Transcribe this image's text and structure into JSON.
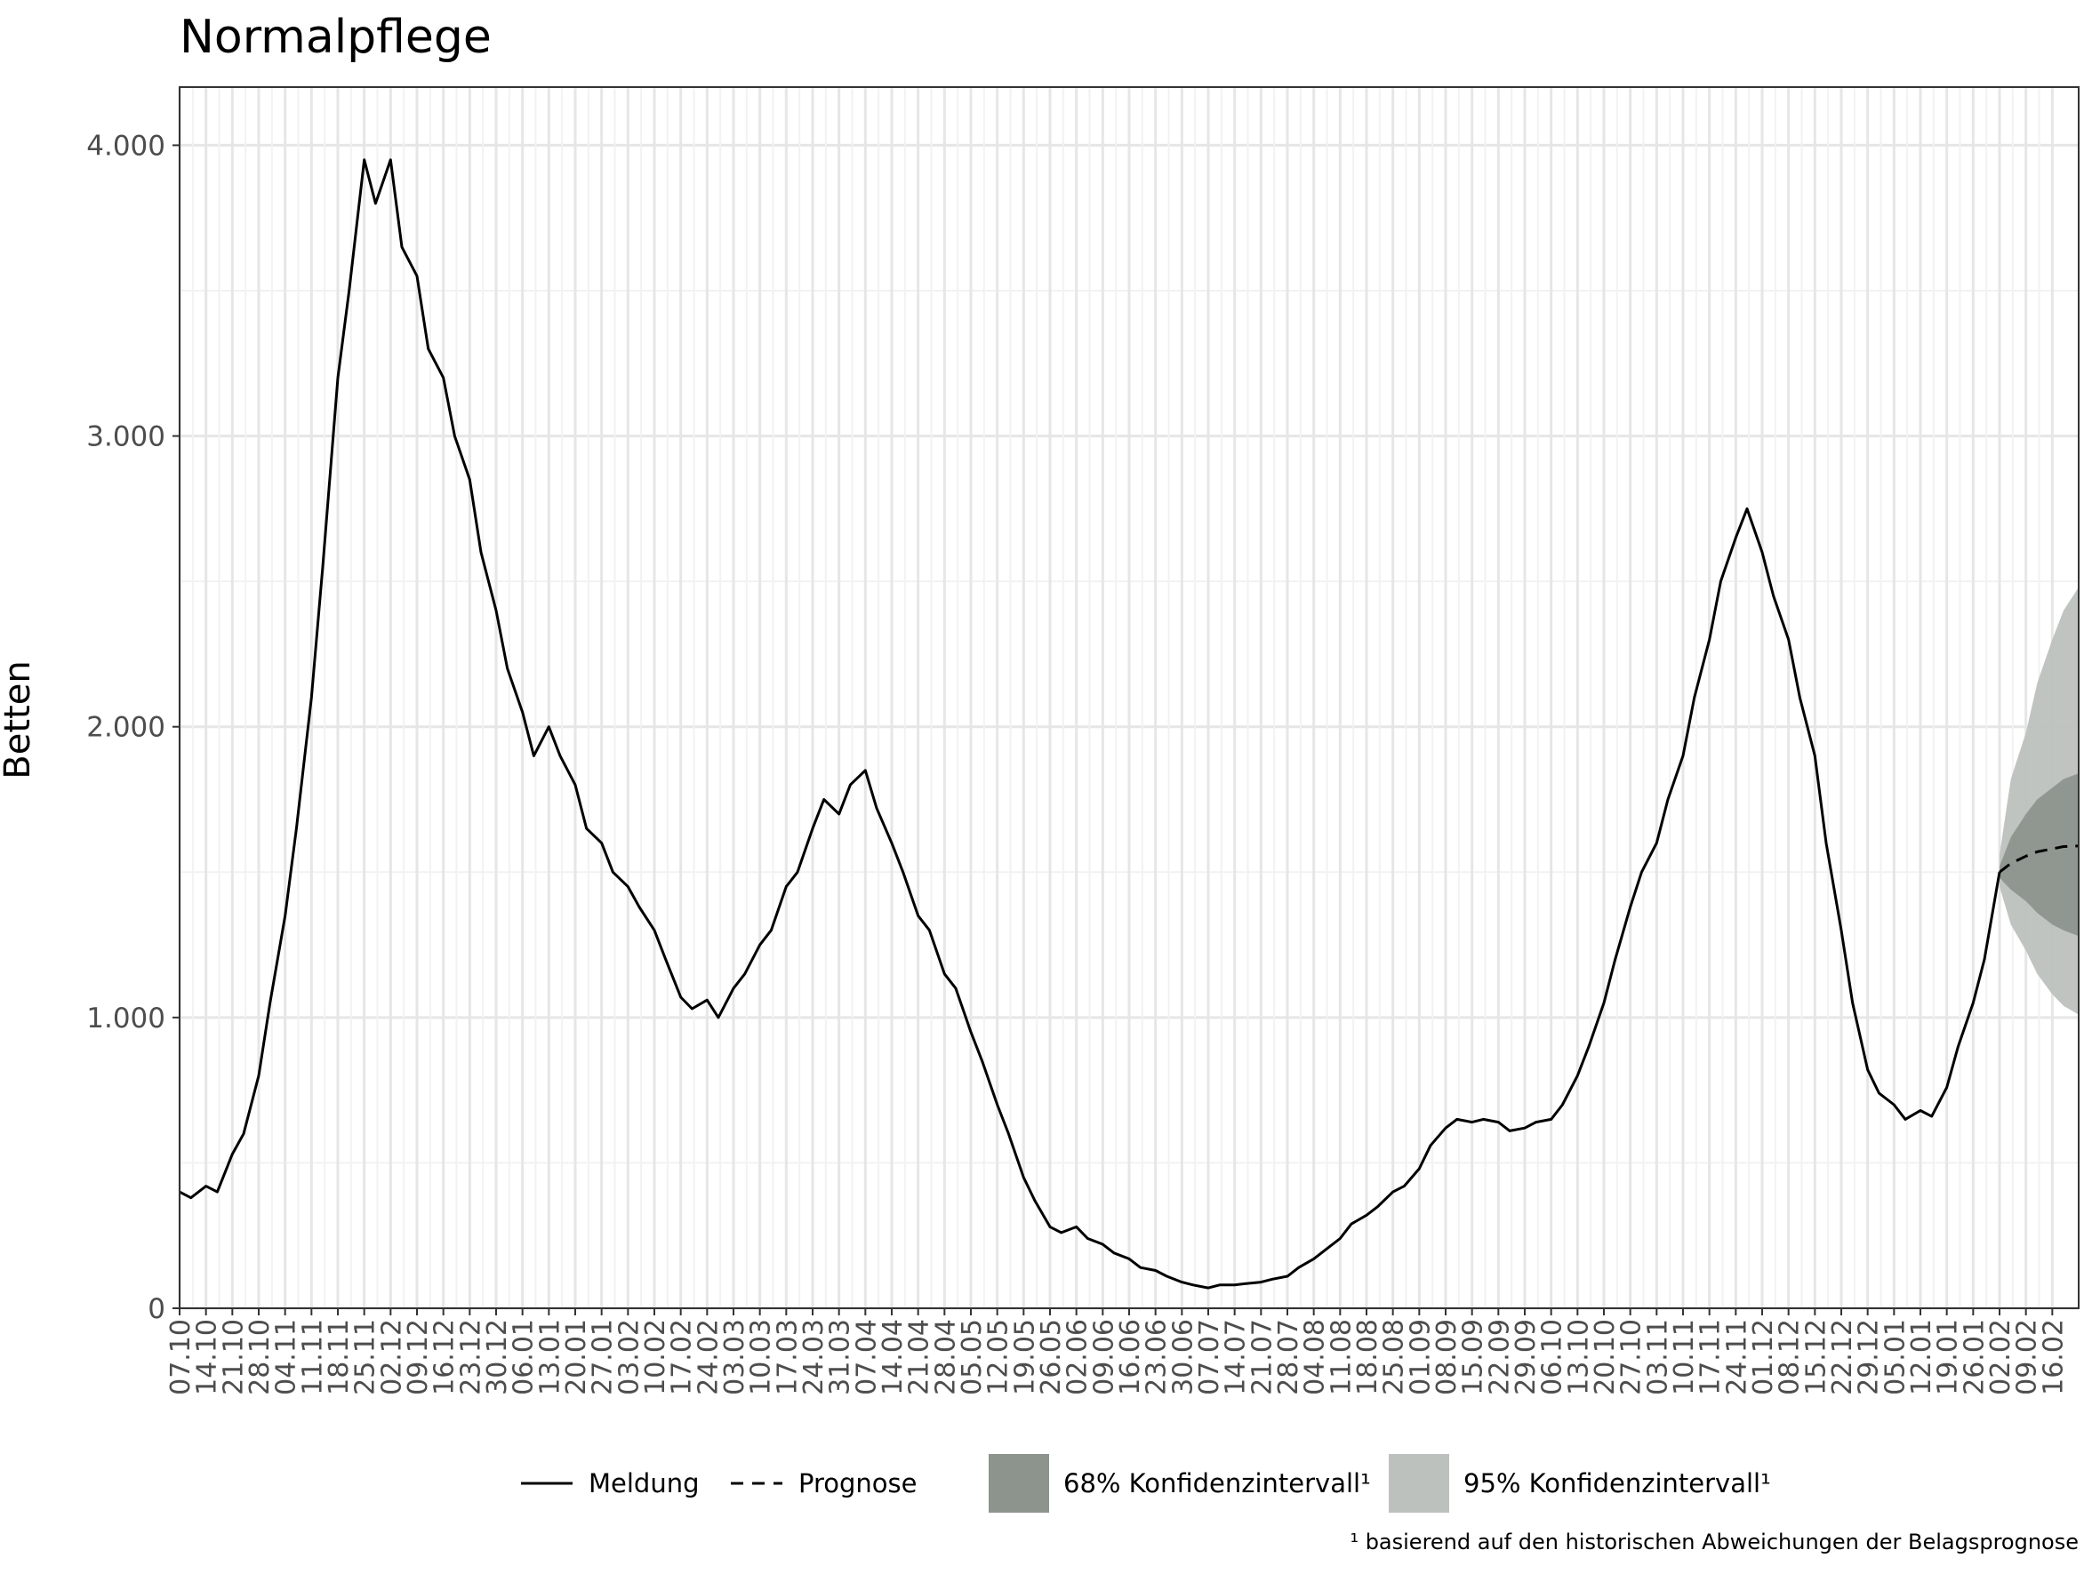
{
  "chart_data": {
    "type": "line",
    "title": "Normalpflege",
    "xlabel": "",
    "ylabel": "Betten",
    "ylim": [
      0,
      4200
    ],
    "y_ticks": [
      0,
      1000,
      2000,
      3000,
      4000
    ],
    "y_tick_labels": [
      "0",
      "1.000",
      "2.000",
      "3.000",
      "4.000"
    ],
    "x_tick_labels": [
      "07.10",
      "14.10",
      "21.10",
      "28.10",
      "04.11",
      "11.11",
      "18.11",
      "25.11",
      "02.12",
      "09.12",
      "16.12",
      "23.12",
      "30.12",
      "06.01",
      "13.01",
      "20.01",
      "27.01",
      "03.02",
      "10.02",
      "17.02",
      "24.02",
      "03.03",
      "10.03",
      "17.03",
      "24.03",
      "31.03",
      "07.04",
      "14.04",
      "21.04",
      "28.04",
      "05.05",
      "12.05",
      "19.05",
      "26.05",
      "02.06",
      "09.06",
      "16.06",
      "23.06",
      "30.06",
      "07.07",
      "14.07",
      "21.07",
      "28.07",
      "04.08",
      "11.08",
      "18.08",
      "25.08",
      "01.09",
      "08.09",
      "15.09",
      "22.09",
      "29.09",
      "06.10",
      "13.10",
      "20.10",
      "27.10",
      "03.11",
      "10.11",
      "17.11",
      "24.11",
      "01.12",
      "08.12",
      "15.12",
      "22.12",
      "29.12",
      "05.01",
      "12.01",
      "19.01",
      "26.01",
      "02.02",
      "09.02",
      "16.02"
    ],
    "grid": true,
    "legend_position": "bottom",
    "series": [
      {
        "name": "Meldung",
        "style": "solid",
        "color": "#000000",
        "x": [
          0,
          3,
          7,
          10,
          14,
          17,
          21,
          24,
          28,
          31,
          35,
          38,
          42,
          45,
          49,
          52,
          56,
          59,
          63,
          66,
          70,
          73,
          77,
          80,
          84,
          87,
          91,
          94,
          98,
          101,
          105,
          108,
          112,
          115,
          119,
          122,
          126,
          129,
          133,
          136,
          140,
          143,
          147,
          150,
          154,
          157,
          161,
          164,
          168,
          171,
          175,
          178,
          182,
          185,
          189,
          192,
          196,
          199,
          203,
          206,
          210,
          213,
          217,
          220,
          224,
          227,
          231,
          234,
          238,
          241,
          245,
          248,
          252,
          255,
          259,
          262,
          266,
          269,
          273,
          276,
          280,
          283,
          287,
          290,
          294,
          297,
          301,
          304,
          308,
          311,
          315,
          318,
          322,
          325,
          329,
          332,
          336,
          339,
          343,
          346,
          350,
          353,
          357,
          360,
          364,
          367,
          371,
          374,
          378,
          381,
          385,
          388,
          392,
          395,
          399,
          402,
          406,
          409,
          413,
          416,
          420,
          423,
          427,
          430,
          434,
          437,
          441,
          444,
          448,
          451,
          455,
          458,
          462,
          465,
          469,
          472,
          476,
          479,
          483
        ],
        "y": [
          400,
          380,
          420,
          400,
          530,
          600,
          800,
          1050,
          1350,
          1650,
          2100,
          2550,
          3200,
          3500,
          3950,
          3800,
          3950,
          3650,
          3550,
          3300,
          3200,
          3000,
          2850,
          2600,
          2400,
          2200,
          2050,
          1900,
          2000,
          1900,
          1800,
          1650,
          1600,
          1500,
          1450,
          1380,
          1300,
          1200,
          1070,
          1030,
          1060,
          1000,
          1100,
          1150,
          1250,
          1300,
          1450,
          1500,
          1650,
          1750,
          1700,
          1800,
          1850,
          1720,
          1600,
          1500,
          1350,
          1300,
          1150,
          1100,
          950,
          850,
          700,
          600,
          450,
          370,
          280,
          260,
          280,
          240,
          220,
          190,
          170,
          140,
          130,
          110,
          90,
          80,
          70,
          80,
          80,
          85,
          90,
          100,
          110,
          140,
          170,
          200,
          240,
          290,
          320,
          350,
          400,
          420,
          480,
          560,
          620,
          650,
          640,
          650,
          640,
          610,
          620,
          640,
          650,
          700,
          800,
          900,
          1050,
          1200,
          1380,
          1500,
          1600,
          1750,
          1900,
          2100,
          2300,
          2500,
          2650,
          2750,
          2600,
          2450,
          2300,
          2100,
          1900,
          1600,
          1300,
          1050,
          820,
          740,
          700,
          650,
          680,
          660,
          760,
          900,
          1050,
          1200,
          1500
        ]
      },
      {
        "name": "Prognose",
        "style": "dashed",
        "color": "#000000",
        "x": [
          483,
          486,
          490,
          493,
          497,
          500,
          504
        ],
        "y": [
          1500,
          1530,
          1555,
          1570,
          1580,
          1588,
          1590
        ]
      }
    ],
    "bands": [
      {
        "name": "68% Konfidenzintervall¹",
        "color": "#8d938d",
        "x": [
          483,
          486,
          490,
          493,
          497,
          500,
          504
        ],
        "lower": [
          1480,
          1440,
          1400,
          1360,
          1320,
          1300,
          1280
        ],
        "upper": [
          1520,
          1620,
          1700,
          1750,
          1790,
          1820,
          1840
        ]
      },
      {
        "name": "95% Konfidenzintervall¹",
        "color": "#bdc1bd",
        "x": [
          483,
          486,
          490,
          493,
          497,
          500,
          504
        ],
        "lower": [
          1450,
          1320,
          1230,
          1150,
          1080,
          1040,
          1010
        ],
        "upper": [
          1560,
          1820,
          1980,
          2150,
          2300,
          2400,
          2480
        ]
      }
    ],
    "x_range": [
      0,
      504
    ],
    "x_tick_step_days": 7
  },
  "legend": {
    "items": [
      {
        "label": "Meldung",
        "kind": "solid-line"
      },
      {
        "label": "Prognose",
        "kind": "dashed-line"
      },
      {
        "label": "68% Konfidenzintervall¹",
        "kind": "band-dark"
      },
      {
        "label": "95% Konfidenzintervall¹",
        "kind": "band-light"
      }
    ]
  },
  "footnote": "¹ basierend auf den historischen Abweichungen der Belagsprognose"
}
